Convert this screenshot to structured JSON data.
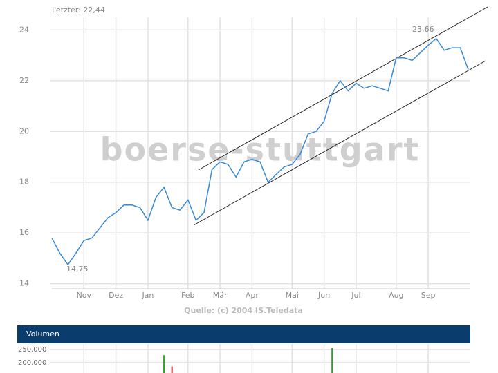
{
  "chart_data": [
    {
      "type": "line",
      "annotations": [
        "Letzter: 22,44",
        "23,66",
        "14,75"
      ],
      "watermark": "boerse-stuttgart",
      "source": "Quelle: (c) 2004 IS.Teledata",
      "categories": [
        null,
        null,
        null,
        null,
        "Nov",
        null,
        null,
        null,
        "Dez",
        null,
        null,
        null,
        "Jan",
        null,
        null,
        null,
        null,
        "Feb",
        null,
        null,
        null,
        "Mär",
        null,
        null,
        null,
        "Apr",
        null,
        null,
        null,
        null,
        "Mai",
        null,
        null,
        null,
        "Jun",
        null,
        null,
        null,
        "Jul",
        null,
        null,
        null,
        null,
        "Aug",
        null,
        null,
        null,
        "Sep",
        null,
        null,
        null,
        null,
        null
      ],
      "values": [
        15.8,
        15.2,
        14.75,
        15.2,
        15.7,
        15.8,
        16.2,
        16.6,
        16.8,
        17.1,
        17.1,
        17.0,
        16.5,
        17.4,
        17.8,
        17.0,
        16.9,
        17.3,
        16.5,
        16.8,
        18.5,
        18.8,
        18.7,
        18.2,
        18.8,
        18.9,
        18.8,
        18.0,
        18.3,
        18.6,
        18.7,
        19.1,
        19.9,
        20.0,
        20.4,
        21.5,
        22.0,
        21.6,
        21.9,
        21.7,
        21.8,
        21.7,
        21.6,
        22.9,
        22.9,
        22.8,
        23.1,
        23.4,
        23.66,
        23.2,
        23.3,
        23.3,
        22.44
      ],
      "color": "#3a8ad6",
      "ylim": [
        13.8,
        24.5
      ],
      "yticks": [
        14,
        16,
        18,
        20,
        22,
        24
      ],
      "grid": true
    },
    {
      "type": "bar",
      "title": "Volumen",
      "values": [
        null,
        null,
        null,
        null,
        null,
        null,
        null,
        null,
        null,
        null,
        null,
        null,
        null,
        null,
        228000,
        185000,
        null,
        null,
        null,
        null,
        null,
        null,
        null,
        null,
        null,
        null,
        null,
        null,
        null,
        null,
        null,
        null,
        null,
        null,
        null,
        255000,
        null,
        null,
        null,
        null,
        null,
        null,
        null,
        null,
        null,
        null,
        null,
        null,
        null,
        null,
        null,
        null,
        null
      ],
      "colors": {
        "up": "#2ca02c",
        "down": "#d62728"
      },
      "down_index": [
        15
      ],
      "ylim": [
        160000,
        271000
      ],
      "yticks": [
        {
          "value": 200000,
          "label": "200.000"
        },
        {
          "value": 250000,
          "label": "250.000"
        }
      ],
      "grid": true
    }
  ]
}
